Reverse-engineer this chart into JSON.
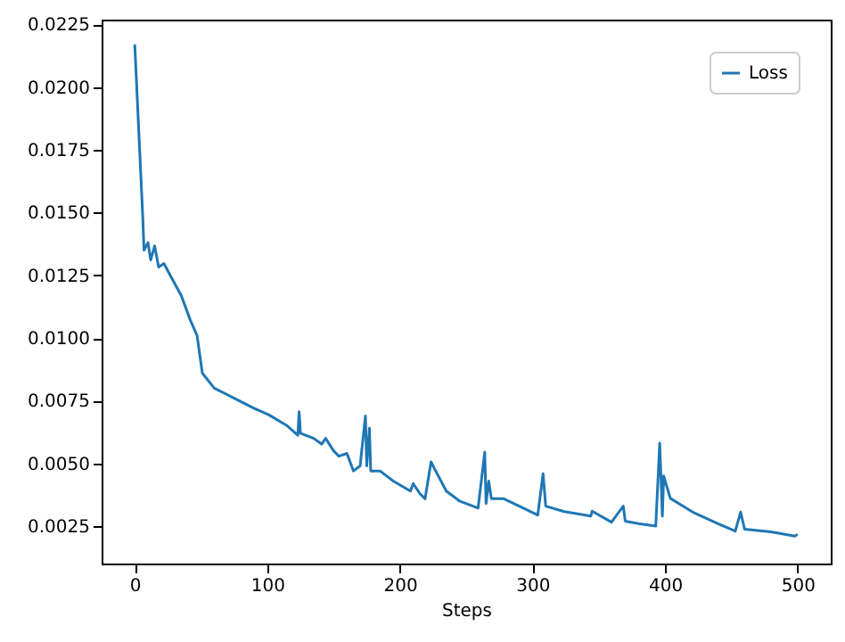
{
  "chart_data": {
    "type": "line",
    "xlabel": "Steps",
    "x": [
      0,
      6,
      7,
      10,
      12,
      15,
      18,
      22,
      27,
      35,
      42,
      47,
      51,
      60,
      75,
      90,
      101,
      115,
      123,
      124,
      125,
      135,
      141,
      144,
      150,
      154,
      160,
      165,
      170,
      174,
      175,
      177,
      178,
      185,
      195,
      208,
      210,
      215,
      219,
      223.5,
      226,
      235,
      245,
      259,
      264,
      265,
      267,
      269,
      278,
      290,
      304,
      308,
      310,
      324,
      344,
      345,
      359.6,
      368.5,
      370,
      380,
      393,
      396,
      398,
      399,
      404,
      422,
      440,
      453,
      457,
      460,
      480,
      498,
      500
    ],
    "series": [
      {
        "name": "Loss",
        "color": "#1f77b4",
        "values": [
          0.0217,
          0.01487,
          0.0135,
          0.0138,
          0.01311,
          0.01367,
          0.01283,
          0.01297,
          0.01247,
          0.0117,
          0.0107,
          0.0101,
          0.0086,
          0.008,
          0.0076,
          0.0072,
          0.00694,
          0.0065,
          0.00612,
          0.00706,
          0.0062,
          0.006,
          0.00577,
          0.006,
          0.0055,
          0.00529,
          0.0054,
          0.0047,
          0.0049,
          0.00689,
          0.0049,
          0.0064,
          0.0047,
          0.0047,
          0.0043,
          0.0039,
          0.0042,
          0.0038,
          0.00359,
          0.00506,
          0.0048,
          0.0039,
          0.0035,
          0.00322,
          0.00545,
          0.0034,
          0.0043,
          0.0036,
          0.0036,
          0.0033,
          0.00294,
          0.00459,
          0.0033,
          0.00308,
          0.0029,
          0.0031,
          0.00266,
          0.0033,
          0.0027,
          0.0026,
          0.0025,
          0.00581,
          0.0029,
          0.0045,
          0.00361,
          0.00303,
          0.0026,
          0.0023,
          0.00306,
          0.00238,
          0.00227,
          0.0021,
          0.00218
        ]
      }
    ],
    "xlim": [
      -25,
      525
    ],
    "xticks": [
      0,
      100,
      200,
      300,
      400,
      500
    ],
    "ylim": [
      0.00101,
      0.02269
    ],
    "yticks": [
      0.0025,
      {
        "value": 0.005,
        "label": "0.0050"
      },
      0.0075,
      {
        "value": 0.01,
        "label": "0.0100"
      },
      0.0125,
      {
        "value": 0.015,
        "label": "0.0150"
      },
      0.0175,
      {
        "value": 0.02,
        "label": "0.0200"
      },
      0.0225
    ],
    "grid": false,
    "legend": "top right",
    "line_style": "solid",
    "marker": "none"
  }
}
